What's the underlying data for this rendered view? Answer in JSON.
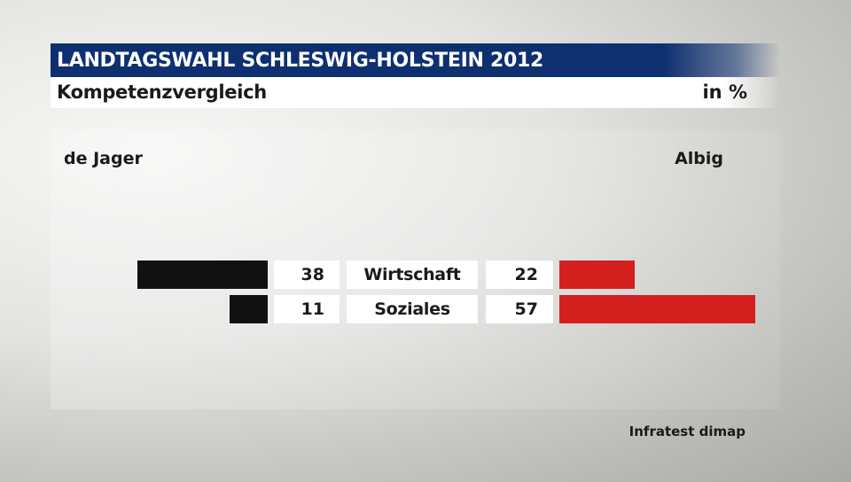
{
  "header": {
    "title": "LANDTAGSWAHL SCHLESWIG-HOLSTEIN 2012",
    "subtitle": "Kompetenzvergleich",
    "unit": "in %"
  },
  "colors": {
    "header_bg": "#0e3070",
    "left_bar": "#111111",
    "right_bar": "#d41f1f"
  },
  "chart_data": {
    "type": "bar",
    "orientation": "horizontal-diverging",
    "title": "Kompetenzvergleich",
    "unit": "in %",
    "categories": [
      "Wirtschaft",
      "Soziales"
    ],
    "series": [
      {
        "name": "de Jager",
        "values": [
          38,
          11
        ],
        "color": "#111111",
        "side": "left"
      },
      {
        "name": "Albig",
        "values": [
          22,
          57
        ],
        "color": "#d41f1f",
        "side": "right"
      }
    ],
    "value_labels": {
      "de Jager": [
        "38",
        "11"
      ],
      "Albig": [
        "22",
        "57"
      ]
    },
    "grid": false,
    "legend": "top"
  },
  "source": "Infratest dimap"
}
